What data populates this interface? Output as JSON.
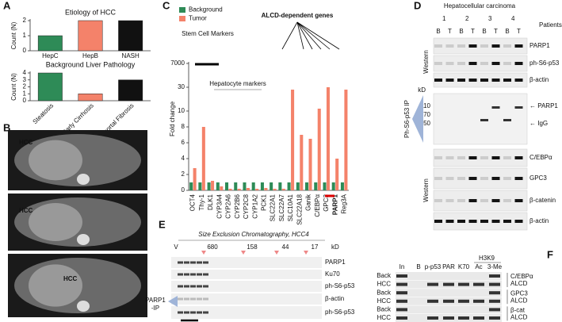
{
  "chart_data": [
    {
      "type": "bar",
      "title": "Etiology of HCC",
      "ylabel": "Count (N)",
      "categories": [
        "HepC",
        "HepB",
        "NASH"
      ],
      "values": [
        1,
        2,
        2
      ],
      "colors": [
        "#2e8b57",
        "#f4826a",
        "#111111"
      ],
      "ylim": [
        0,
        2
      ],
      "yticks": [
        0,
        1,
        2
      ]
    },
    {
      "type": "bar",
      "title": "Background Liver Pathology",
      "ylabel": "Count (N)",
      "categories": [
        "Steatosis",
        "Early Cirrhosis",
        "Periportal Fibrosis"
      ],
      "values": [
        4,
        1,
        3
      ],
      "colors": [
        "#2e8b57",
        "#f4826a",
        "#111111"
      ],
      "ylim": [
        0,
        4
      ],
      "yticks": [
        0,
        1,
        2,
        3,
        4
      ]
    },
    {
      "type": "bar",
      "ylabel": "Fold change",
      "axis_break": true,
      "legend": "top-left",
      "categories": [
        "OCT4",
        "Thy-1",
        "DLK1",
        "CYP3A4",
        "CYP2A6",
        "CYP2B6",
        "CYP2C8",
        "CYP1A2",
        "PCK1",
        "SLC22A1",
        "SLC22A7",
        "SLC10A1",
        "SLC22A18",
        "Ganik",
        "C/EBPα",
        "GPC3",
        "PARP1",
        "Reg3A"
      ],
      "series": [
        {
          "name": "Background",
          "color": "#2e8b57",
          "values": [
            1,
            1,
            1,
            1,
            1,
            1,
            1,
            1,
            1,
            1,
            1,
            1,
            1,
            1,
            1,
            1,
            1,
            1
          ]
        },
        {
          "name": "Tumor",
          "color": "#f4826a",
          "values": [
            2.8,
            8,
            1.2,
            0.5,
            0.2,
            0.2,
            0.3,
            0.2,
            0.3,
            0.2,
            0.2,
            28,
            7,
            6.5,
            12,
            32,
            4,
            28
          ]
        }
      ],
      "ylim": [
        0,
        7000
      ],
      "yticks": [
        0,
        2,
        4,
        6,
        8,
        10,
        30,
        7000
      ],
      "annotations": [
        "Stem Cell Markers",
        "Hepatocyte markers",
        "ALCD-dependent genes"
      ]
    }
  ],
  "figure": {
    "letters": [
      "A",
      "B",
      "C",
      "D",
      "E",
      "F"
    ],
    "B": {
      "labels": [
        "HCC",
        "HCC",
        "HCC"
      ]
    },
    "D": {
      "header": "Hepatocellular carcinoma",
      "patients": [
        "1",
        "2",
        "3",
        "4"
      ],
      "patients_label": "Patients",
      "lanes": [
        "B",
        "T",
        "B",
        "T",
        "B",
        "T",
        "B",
        "T"
      ],
      "rows": [
        "PARP1",
        "ph-S6-p53",
        "β-actin",
        "C/EBPα",
        "GPC3",
        "β-catenin",
        "β-actin"
      ],
      "ip_label": "Ph-S6-p53 IP",
      "kd": "kD",
      "markers": [
        "110",
        "70",
        "50"
      ],
      "ip_bands": [
        "← PARP1",
        "← IgG"
      ],
      "side": [
        "Western",
        "Western"
      ]
    },
    "E": {
      "title": "Size Exclusion Chromatography, HCC4",
      "fractions": [
        "V",
        "680",
        "158",
        "44",
        "17"
      ],
      "kd": "kD",
      "rows": [
        "PARP1",
        "Ku70",
        "ph-S6-p53",
        "β-actin",
        "ph-S6-p53"
      ],
      "ip": [
        "PARP1",
        "-IP"
      ]
    },
    "F": {
      "group": "H3K9",
      "columns": [
        "In",
        "B",
        "p-p53",
        "PAR",
        "K70",
        "Ac",
        "3-Me"
      ],
      "rows": [
        "Back",
        "HCC",
        "Back",
        "HCC",
        "Back",
        "HCC"
      ],
      "side": [
        [
          "C/EBPα",
          "ALCD"
        ],
        [
          "GPC3",
          "ALCD"
        ],
        [
          "β-cat",
          "ALCD"
        ]
      ]
    }
  }
}
